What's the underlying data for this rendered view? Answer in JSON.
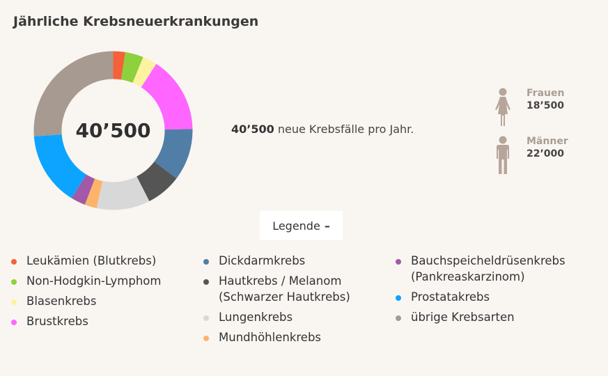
{
  "title": "Jährliche Krebsneuerkrankungen",
  "summary": {
    "total": "40’500",
    "text": "neue Krebsfälle pro Jahr."
  },
  "gender": {
    "women": {
      "label": "Frauen",
      "value": "18’500"
    },
    "men": {
      "label": "Männer",
      "value": "22’000"
    }
  },
  "legend_toggle": {
    "label": "Legende",
    "symbol": "–"
  },
  "colors": {
    "figure": "#b7a59b",
    "background": "#f9f6f2"
  },
  "chart_data": {
    "type": "pie",
    "center_label": "40’500",
    "total": 40500,
    "slices": [
      {
        "label": "Leukämien (Blutkrebs)",
        "value": 1000,
        "color": "#f5623a"
      },
      {
        "label": "Non-Hodgkin-Lymphom",
        "value": 1500,
        "color": "#8dd13c"
      },
      {
        "label": "Blasenkrebs",
        "value": 1200,
        "color": "#fdf2a0"
      },
      {
        "label": "Brustkrebs",
        "value": 6300,
        "color": "#ff66ff"
      },
      {
        "label": "Dickdarmkrebs",
        "value": 4300,
        "color": "#517ea6"
      },
      {
        "label": "Hautkrebs / Melanom (Schwarzer Hautkrebs)",
        "value": 2900,
        "color": "#555555"
      },
      {
        "label": "Lungenkrebs",
        "value": 4400,
        "color": "#d8d8d8"
      },
      {
        "label": "Mundhöhlenkrebs",
        "value": 1000,
        "color": "#fdb36a"
      },
      {
        "label": "Bauchspeicheldrüsenkrebs (Pankreaskarzinom)",
        "value": 1200,
        "color": "#a259a8"
      },
      {
        "label": "Prostatakrebs",
        "value": 6100,
        "color": "#0ca4ff"
      },
      {
        "label": "übrige Krebsarten",
        "value": 10600,
        "color": "#a79a90"
      }
    ]
  },
  "legend_columns": [
    [
      {
        "lines": [
          "Leukämien (Blutkrebs)"
        ],
        "color": "#f5623a"
      },
      {
        "lines": [
          "Non-Hodgkin-Lymphom"
        ],
        "color": "#8dd13c"
      },
      {
        "lines": [
          "Blasenkrebs"
        ],
        "color": "#fdf2a0"
      },
      {
        "lines": [
          "Brustkrebs"
        ],
        "color": "#ff66ff"
      }
    ],
    [
      {
        "lines": [
          "Dickdarmkrebs"
        ],
        "color": "#517ea6"
      },
      {
        "lines": [
          "Hautkrebs / Melanom",
          "(Schwarzer Hautkrebs)"
        ],
        "color": "#555555"
      },
      {
        "lines": [
          "Lungenkrebs"
        ],
        "color": "#d8d8d8"
      },
      {
        "lines": [
          "Mundhöhlenkrebs"
        ],
        "color": "#fdb36a"
      }
    ],
    [
      {
        "lines": [
          "Bauchspeicheldrüsenkrebs",
          "(Pankreaskarzinom)"
        ],
        "color": "#a259a8"
      },
      {
        "lines": [
          "Prostatakrebs"
        ],
        "color": "#0ca4ff"
      },
      {
        "lines": [
          "übrige Krebsarten"
        ],
        "color": "#a79a90"
      }
    ]
  ]
}
